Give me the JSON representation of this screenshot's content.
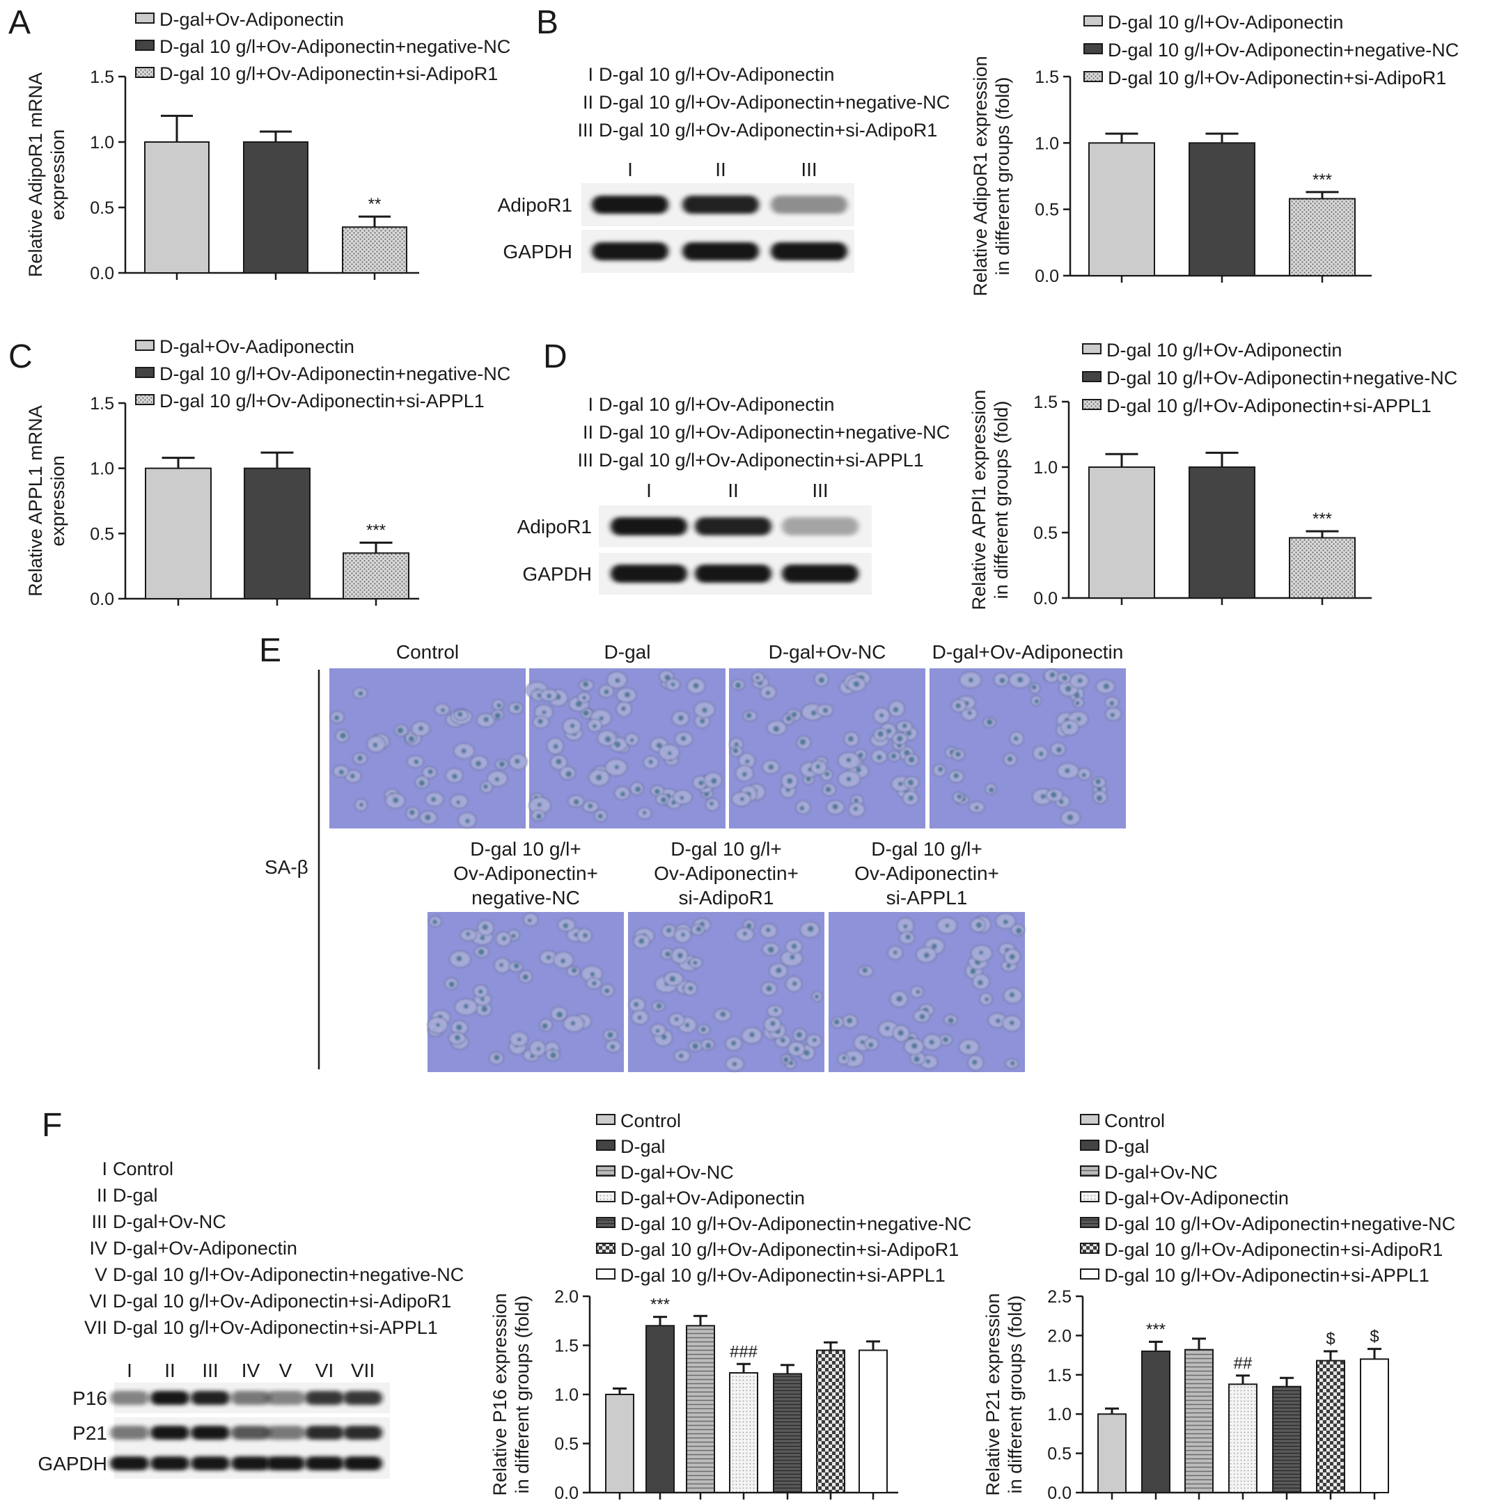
{
  "palette": {
    "light": "#cccccc",
    "dark": "#444444",
    "blot_bg": "#f2f2f2",
    "band": "#141414",
    "cell_bg": "#8e92d8",
    "cell_fill": "#a8acd8",
    "cell_nucleus": "#3f6f88"
  },
  "panels": {
    "A": {
      "letter": "A"
    },
    "B": {
      "letter": "B",
      "roman": [
        "I",
        "II",
        "III"
      ],
      "roman_legend": [
        "D-gal 10 g/l+Ov-Adiponectin",
        "D-gal 10 g/l+Ov-Adiponectin+negative-NC",
        "D-gal 10 g/l+Ov-Adiponectin+si-AdipoR1"
      ],
      "blot_rows": [
        "AdipoR1",
        "GAPDH"
      ],
      "band_intensity": [
        [
          1.0,
          0.95,
          0.45
        ],
        [
          1.0,
          1.0,
          1.0
        ]
      ]
    },
    "C": {
      "letter": "C"
    },
    "D": {
      "letter": "D",
      "roman": [
        "I",
        "II",
        "III"
      ],
      "roman_legend": [
        "D-gal 10 g/l+Ov-Adiponectin",
        "D-gal 10 g/l+Ov-Adiponectin+negative-NC",
        "D-gal 10 g/l+Ov-Adiponectin+si-APPL1"
      ],
      "blot_rows": [
        "AdipoR1",
        "GAPDH"
      ],
      "band_intensity": [
        [
          1.0,
          0.95,
          0.35
        ],
        [
          1.0,
          1.0,
          1.0
        ]
      ]
    },
    "E": {
      "letter": "E",
      "row_label": "SA-β",
      "top_captions": [
        "Control",
        "D-gal",
        "D-gal+Ov-NC",
        "D-gal+Ov-Adiponectin"
      ],
      "bottom_captions": [
        [
          "D-gal 10 g/l+",
          "Ov-Adiponectin+",
          "negative-NC"
        ],
        [
          "D-gal 10 g/l+",
          "Ov-Adiponectin+",
          "si-AdipoR1"
        ],
        [
          "D-gal 10 g/l+",
          "Ov-Adiponectin+",
          "si-APPL1"
        ]
      ]
    },
    "F": {
      "letter": "F",
      "roman": [
        "I",
        "II",
        "III",
        "IV",
        "V",
        "VI",
        "VII"
      ],
      "roman_legend": [
        "Control",
        "D-gal",
        "D-gal+Ov-NC",
        "D-gal+Ov-Adiponectin",
        "D-gal 10 g/l+Ov-Adiponectin+negative-NC",
        "D-gal 10 g/l+Ov-Adiponectin+si-AdipoR1",
        "D-gal 10 g/l+Ov-Adiponectin+si-APPL1"
      ],
      "blot_rows": [
        "P16",
        "P21",
        "GAPDH"
      ],
      "band_intensity": [
        [
          0.5,
          1.0,
          0.95,
          0.55,
          0.5,
          0.85,
          0.85
        ],
        [
          0.55,
          1.0,
          1.0,
          0.7,
          0.55,
          0.9,
          0.9
        ],
        [
          1.0,
          1.0,
          1.0,
          1.0,
          1.0,
          1.0,
          1.0
        ]
      ]
    }
  },
  "chart_data": [
    {
      "id": "A",
      "type": "bar",
      "ylabel": [
        "Relative AdipoR1 mRNA",
        "expression"
      ],
      "ylim": [
        0,
        1.5
      ],
      "yticks": [
        "0.0",
        "0.5",
        "1.0",
        "1.5"
      ],
      "series": [
        {
          "name": "D-gal+Ov-Adiponectin",
          "value": 1.0,
          "error": 0.2,
          "pattern": "light",
          "sig": ""
        },
        {
          "name": "D-gal 10 g/l+Ov-Adiponectin+negative-NC",
          "value": 1.0,
          "error": 0.08,
          "pattern": "dark",
          "sig": ""
        },
        {
          "name": "D-gal 10 g/l+Ov-Adiponectin+si-AdipoR1",
          "value": 0.35,
          "error": 0.08,
          "pattern": "dots",
          "sig": "**"
        }
      ]
    },
    {
      "id": "B",
      "type": "bar",
      "ylabel": [
        "Relative AdipoR1 expression",
        "in different groups (fold)"
      ],
      "ylim": [
        0,
        1.5
      ],
      "yticks": [
        "0.0",
        "0.5",
        "1.0",
        "1.5"
      ],
      "series": [
        {
          "name": "D-gal 10 g/l+Ov-Adiponectin",
          "value": 1.0,
          "error": 0.07,
          "pattern": "light",
          "sig": ""
        },
        {
          "name": "D-gal 10 g/l+Ov-Adiponectin+negative-NC",
          "value": 1.0,
          "error": 0.07,
          "pattern": "dark",
          "sig": ""
        },
        {
          "name": "D-gal 10 g/l+Ov-Adiponectin+si-AdipoR1",
          "value": 0.58,
          "error": 0.05,
          "pattern": "dots",
          "sig": "***"
        }
      ]
    },
    {
      "id": "C",
      "type": "bar",
      "ylabel": [
        "Relative APPL1 mRNA",
        "expression"
      ],
      "ylim": [
        0,
        1.5
      ],
      "yticks": [
        "0.0",
        "0.5",
        "1.0",
        "1.5"
      ],
      "series": [
        {
          "name": "D-gal+Ov-Aadiponectin",
          "value": 1.0,
          "error": 0.08,
          "pattern": "light",
          "sig": ""
        },
        {
          "name": "D-gal 10 g/l+Ov-Adiponectin+negative-NC",
          "value": 1.0,
          "error": 0.12,
          "pattern": "dark",
          "sig": ""
        },
        {
          "name": "D-gal 10 g/l+Ov-Adiponectin+si-APPL1",
          "value": 0.35,
          "error": 0.08,
          "pattern": "dots",
          "sig": "***"
        }
      ]
    },
    {
      "id": "D",
      "type": "bar",
      "ylabel": [
        "Relative APPl1 expression",
        "in different groups (fold)"
      ],
      "ylim": [
        0,
        1.5
      ],
      "yticks": [
        "0.0",
        "0.5",
        "1.0",
        "1.5"
      ],
      "series": [
        {
          "name": "D-gal 10 g/l+Ov-Adiponectin",
          "value": 1.0,
          "error": 0.1,
          "pattern": "light",
          "sig": ""
        },
        {
          "name": "D-gal 10 g/l+Ov-Adiponectin+negative-NC",
          "value": 1.0,
          "error": 0.11,
          "pattern": "dark",
          "sig": ""
        },
        {
          "name": "D-gal 10 g/l+Ov-Adiponectin+si-APPL1",
          "value": 0.46,
          "error": 0.05,
          "pattern": "dots",
          "sig": "***"
        }
      ]
    },
    {
      "id": "F1",
      "type": "bar",
      "ylabel": [
        "Relative P16 expression",
        "in different groups (fold)"
      ],
      "ylim": [
        0,
        2.0
      ],
      "yticks": [
        "0.0",
        "0.5",
        "1.0",
        "1.5",
        "2.0"
      ],
      "series": [
        {
          "name": "Control",
          "value": 1.0,
          "error": 0.06,
          "pattern": "light",
          "sig": ""
        },
        {
          "name": "D-gal",
          "value": 1.7,
          "error": 0.09,
          "pattern": "dark",
          "sig": "***"
        },
        {
          "name": "D-gal+Ov-NC",
          "value": 1.7,
          "error": 0.1,
          "pattern": "lines",
          "sig": ""
        },
        {
          "name": "D-gal+Ov-Adiponectin",
          "value": 1.22,
          "error": 0.09,
          "pattern": "dotsfine",
          "sig": "###"
        },
        {
          "name": "D-gal 10 g/l+Ov-Adiponectin+negative-NC",
          "value": 1.21,
          "error": 0.09,
          "pattern": "dense",
          "sig": ""
        },
        {
          "name": "D-gal 10 g/l+Ov-Adiponectin+si-AdipoR1",
          "value": 1.45,
          "error": 0.08,
          "pattern": "check",
          "sig": ""
        },
        {
          "name": "D-gal 10 g/l+Ov-Adiponectin+si-APPL1",
          "value": 1.45,
          "error": 0.09,
          "pattern": "white",
          "sig": ""
        }
      ]
    },
    {
      "id": "F2",
      "type": "bar",
      "ylabel": [
        "Relative P21 expression",
        "in different groups (fold)"
      ],
      "ylim": [
        0,
        2.5
      ],
      "yticks": [
        "0.0",
        "0.5",
        "1.0",
        "1.5",
        "2.0",
        "2.5"
      ],
      "series": [
        {
          "name": "Control",
          "value": 1.0,
          "error": 0.07,
          "pattern": "light",
          "sig": ""
        },
        {
          "name": "D-gal",
          "value": 1.8,
          "error": 0.12,
          "pattern": "dark",
          "sig": "***"
        },
        {
          "name": "D-gal+Ov-NC",
          "value": 1.82,
          "error": 0.14,
          "pattern": "lines",
          "sig": ""
        },
        {
          "name": "D-gal+Ov-Adiponectin",
          "value": 1.38,
          "error": 0.11,
          "pattern": "dotsfine",
          "sig": "##"
        },
        {
          "name": "D-gal 10 g/l+Ov-Adiponectin+negative-NC",
          "value": 1.35,
          "error": 0.11,
          "pattern": "dense",
          "sig": ""
        },
        {
          "name": "D-gal 10 g/l+Ov-Adiponectin+si-AdipoR1",
          "value": 1.68,
          "error": 0.12,
          "pattern": "check",
          "sig": "$"
        },
        {
          "name": "D-gal 10 g/l+Ov-Adiponectin+si-APPL1",
          "value": 1.7,
          "error": 0.13,
          "pattern": "white",
          "sig": "$"
        }
      ]
    }
  ]
}
